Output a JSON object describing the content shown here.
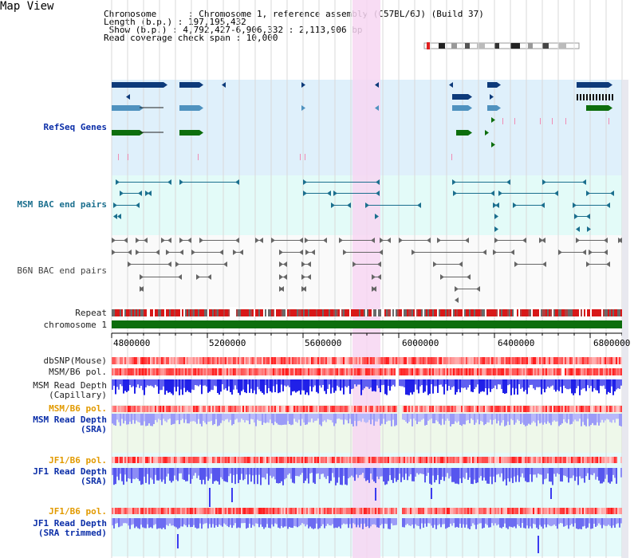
{
  "title": "Map View",
  "header": {
    "chromosome_line": "Chromosome      : Chromosome 1, reference assembly (C57BL/6J) (Build 37)",
    "length_line": "Length (b.p.) : 197,195,432",
    "show_line": " Show (b.p.) : 4,792,427-6,906,332 : 2,113,906 bp",
    "coverage_line": "Read coverage check span : 10,000"
  },
  "tracks": {
    "refseq": "RefSeq Genes",
    "msm_bac": "MSM BAC end pairs",
    "b6n_bac": "B6N BAC end pairs",
    "repeat": "Repeat",
    "chromosome": "chromosome 1",
    "dbsnp": "dbSNP(Mouse)",
    "msm_b6_pol_1": "MSM/B6 pol.",
    "msm_read_cap": "MSM Read Depth\n(Capillary)",
    "msm_b6_pol_2": "MSM/B6 pol.",
    "msm_read_sra": "MSM Read Depth\n(SRA)",
    "jf1_b6_pol_1": "JF1/B6 pol.",
    "jf1_read_sra": "JF1 Read Depth\n(SRA)",
    "jf1_b6_pol_2": "JF1/B6 pol.",
    "jf1_read_trim": "JF1 Read Depth\n(SRA trimmed)"
  },
  "axis": {
    "ticks": [
      "4800000",
      "5200000",
      "5600000",
      "6000000",
      "6400000",
      "6800000"
    ]
  },
  "colors": {
    "highlight": "#f7d6f2",
    "refseq_bg": "#dff0fb",
    "msm_bg": "#e3fbf8",
    "gene_navy": "#0d3a7a",
    "gene_blue": "#4f92bf",
    "gene_green": "#0d6e0d",
    "chromosome_green": "#0d6e0d",
    "depth_blue": "#3b3bf0",
    "depth_light": "#8c8cf5"
  }
}
